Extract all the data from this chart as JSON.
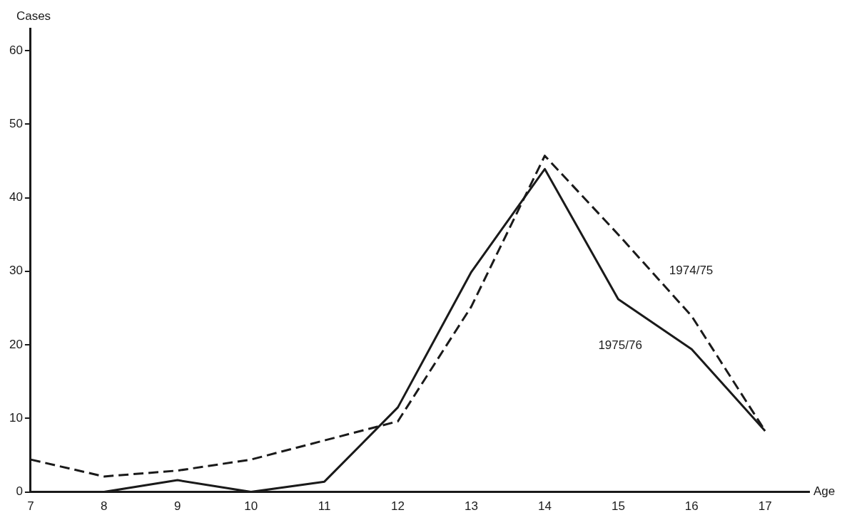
{
  "chart_data": {
    "type": "line",
    "xlabel": "Age",
    "ylabel": "Cases",
    "xlim": [
      7,
      17.6
    ],
    "xticks": [
      7,
      8,
      9,
      10,
      11,
      12,
      13,
      14,
      15,
      16,
      17
    ],
    "ylim": [
      0,
      63
    ],
    "yticks": [
      0,
      10,
      20,
      30,
      40,
      50,
      60
    ],
    "grid": false,
    "legend": false,
    "marker": "none",
    "series": [
      {
        "name": "1974/75",
        "color": "#1a1a1a",
        "line_style": "dashed",
        "x": [
          7,
          8,
          9,
          10,
          11,
          12,
          13,
          14,
          15,
          16,
          17
        ],
        "values": [
          4.4,
          2.1,
          2.9,
          4.4,
          7,
          9.6,
          25.2,
          45.7,
          35,
          23.9,
          8.3
        ]
      },
      {
        "name": "1975/76",
        "color": "#1a1a1a",
        "line_style": "solid",
        "x": [
          8,
          9,
          10,
          11,
          12,
          13,
          14,
          15,
          16,
          17
        ],
        "values": [
          0,
          1.6,
          0,
          1.4,
          11.5,
          29.9,
          43.9,
          26.2,
          19.4,
          8.3
        ]
      }
    ]
  }
}
